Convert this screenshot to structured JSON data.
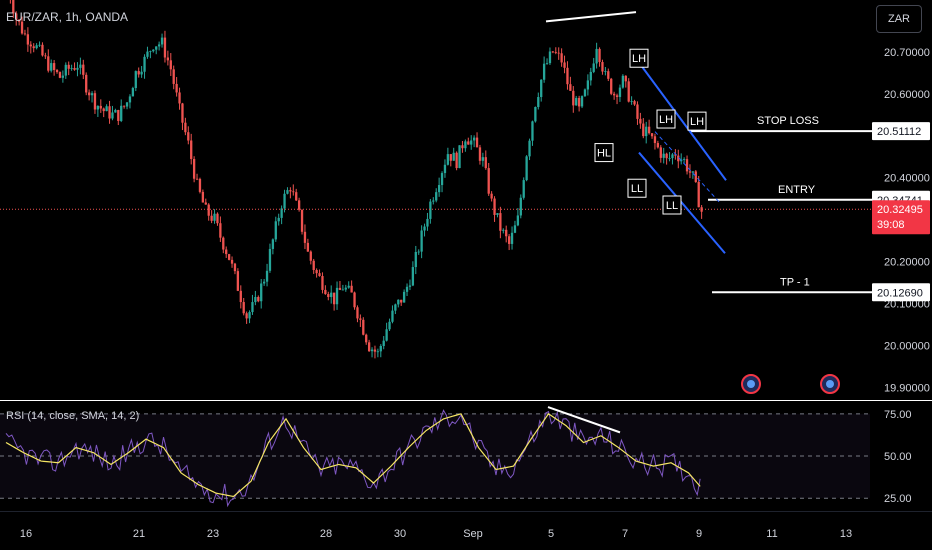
{
  "header": {
    "symbol": "EUR/ZAR, 1h, OANDA",
    "currency_button": "ZAR"
  },
  "price_axis": {
    "labels": [
      "20.70000",
      "20.60000",
      "20.40000",
      "20.20000",
      "20.10000",
      "20.00000",
      "19.90000"
    ]
  },
  "price_tags": {
    "stop_loss": "20.51112",
    "entry": "20.34741",
    "current": "20.32495",
    "countdown": "39:08",
    "tp1": "20.12690"
  },
  "annotations": {
    "stop_loss": "STOP LOSS",
    "entry": "ENTRY",
    "tp1": "TP - 1",
    "swing_labels": [
      "LH",
      "LH",
      "LH",
      "HL",
      "LL",
      "LL"
    ]
  },
  "rsi": {
    "title": "RSI (14, close, SMA, 14, 2)",
    "axis_labels": [
      "75.00",
      "50.00",
      "25.00"
    ]
  },
  "time_axis": {
    "labels": [
      "16",
      "21",
      "23",
      "28",
      "30",
      "Sep",
      "5",
      "7",
      "9",
      "11",
      "13"
    ]
  },
  "colors": {
    "background": "#000000",
    "up": "#26a69a",
    "down": "#ef5350",
    "channel": "#2962ff",
    "rsi_line": "#7e57c2",
    "rsi_ma": "#f5e663",
    "current_tag": "#f23645"
  },
  "chart_data": {
    "type": "candlestick",
    "instrument": "EUR/ZAR",
    "ylim": [
      19.87,
      20.8
    ],
    "close_path": [
      [
        0,
        20.86
      ],
      [
        3,
        20.78
      ],
      [
        6,
        20.74
      ],
      [
        9,
        20.72
      ],
      [
        12,
        20.69
      ],
      [
        15,
        20.66
      ],
      [
        18,
        20.64
      ],
      [
        21,
        20.66
      ],
      [
        24,
        20.67
      ],
      [
        27,
        20.62
      ],
      [
        30,
        20.58
      ],
      [
        33,
        20.56
      ],
      [
        36,
        20.55
      ],
      [
        38,
        20.55
      ],
      [
        41,
        20.58
      ],
      [
        44,
        20.65
      ],
      [
        47,
        20.68
      ],
      [
        50,
        20.72
      ],
      [
        53,
        20.72
      ],
      [
        56,
        20.66
      ],
      [
        59,
        20.56
      ],
      [
        62,
        20.48
      ],
      [
        65,
        20.38
      ],
      [
        68,
        20.32
      ],
      [
        71,
        20.3
      ],
      [
        73,
        20.26
      ],
      [
        76,
        20.21
      ],
      [
        79,
        20.14
      ],
      [
        82,
        20.07
      ],
      [
        85,
        20.1
      ],
      [
        88,
        20.16
      ],
      [
        91,
        20.25
      ],
      [
        94,
        20.34
      ],
      [
        97,
        20.38
      ],
      [
        100,
        20.31
      ],
      [
        103,
        20.22
      ],
      [
        106,
        20.17
      ],
      [
        109,
        20.14
      ],
      [
        112,
        20.11
      ],
      [
        115,
        20.14
      ],
      [
        118,
        20.12
      ],
      [
        121,
        20.06
      ],
      [
        124,
        20.0
      ],
      [
        127,
        19.98
      ],
      [
        130,
        20.04
      ],
      [
        133,
        20.09
      ],
      [
        136,
        20.12
      ],
      [
        139,
        20.18
      ],
      [
        142,
        20.26
      ],
      [
        145,
        20.34
      ],
      [
        148,
        20.4
      ],
      [
        151,
        20.46
      ],
      [
        154,
        20.44
      ],
      [
        157,
        20.5
      ],
      [
        160,
        20.48
      ],
      [
        163,
        20.44
      ],
      [
        166,
        20.34
      ],
      [
        169,
        20.28
      ],
      [
        172,
        20.24
      ],
      [
        175,
        20.3
      ],
      [
        178,
        20.46
      ],
      [
        181,
        20.58
      ],
      [
        184,
        20.66
      ],
      [
        187,
        20.7
      ],
      [
        190,
        20.68
      ],
      [
        193,
        20.6
      ],
      [
        196,
        20.56
      ],
      [
        199,
        20.62
      ],
      [
        202,
        20.72
      ],
      [
        205,
        20.64
      ],
      [
        208,
        20.6
      ],
      [
        211,
        20.63
      ],
      [
        214,
        20.58
      ],
      [
        217,
        20.52
      ],
      [
        220,
        20.5
      ],
      [
        223,
        20.47
      ],
      [
        226,
        20.44
      ],
      [
        229,
        20.46
      ],
      [
        232,
        20.44
      ],
      [
        235,
        20.4
      ],
      [
        238,
        20.32
      ]
    ],
    "rsi_series": [
      [
        0,
        58
      ],
      [
        6,
        52
      ],
      [
        12,
        47
      ],
      [
        18,
        46
      ],
      [
        24,
        55
      ],
      [
        30,
        52
      ],
      [
        36,
        45
      ],
      [
        42,
        52
      ],
      [
        48,
        60
      ],
      [
        54,
        55
      ],
      [
        60,
        40
      ],
      [
        66,
        33
      ],
      [
        72,
        28
      ],
      [
        78,
        26
      ],
      [
        84,
        35
      ],
      [
        90,
        58
      ],
      [
        96,
        72
      ],
      [
        102,
        55
      ],
      [
        108,
        42
      ],
      [
        114,
        45
      ],
      [
        120,
        43
      ],
      [
        126,
        34
      ],
      [
        132,
        44
      ],
      [
        138,
        55
      ],
      [
        144,
        65
      ],
      [
        150,
        72
      ],
      [
        156,
        75
      ],
      [
        162,
        55
      ],
      [
        168,
        42
      ],
      [
        174,
        44
      ],
      [
        180,
        60
      ],
      [
        186,
        75
      ],
      [
        192,
        68
      ],
      [
        198,
        58
      ],
      [
        204,
        62
      ],
      [
        210,
        55
      ],
      [
        216,
        47
      ],
      [
        222,
        44
      ],
      [
        228,
        46
      ],
      [
        234,
        40
      ],
      [
        238,
        32
      ]
    ],
    "rsi_ylim": [
      18,
      82
    ]
  }
}
